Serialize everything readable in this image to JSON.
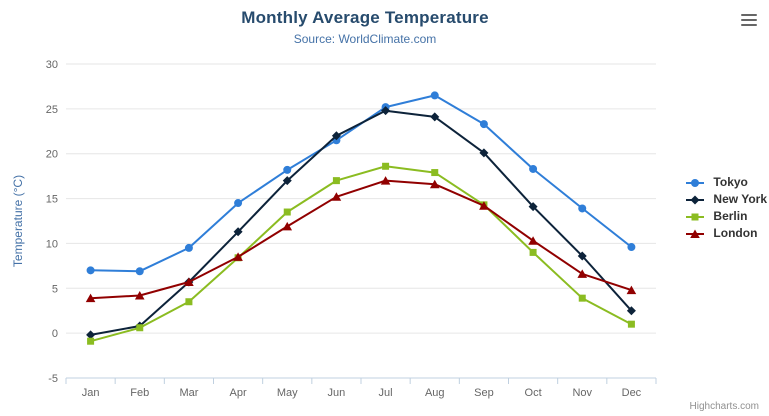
{
  "title": "Monthly Average Temperature",
  "subtitle": "Source: WorldClimate.com",
  "credits": "Highcharts.com",
  "colors": {
    "title": "#274b6d",
    "subtitle": "#4572a7",
    "axis_label": "#666666",
    "axis_title": "#4572a7",
    "gridline": "#e6e6e6",
    "axis_line": "#c0d0e0",
    "tick": "#c0d0e0"
  },
  "chart_data": {
    "type": "line",
    "title": "Monthly Average Temperature",
    "subtitle": "Source: WorldClimate.com",
    "xlabel": "",
    "ylabel": "Temperature (°C)",
    "ylim": [
      -5,
      30
    ],
    "ytick_step": 5,
    "grid": true,
    "legend_position": "right-middle",
    "categories": [
      "Jan",
      "Feb",
      "Mar",
      "Apr",
      "May",
      "Jun",
      "Jul",
      "Aug",
      "Sep",
      "Oct",
      "Nov",
      "Dec"
    ],
    "series": [
      {
        "name": "Tokyo",
        "color": "#2f7ed8",
        "marker": "circle",
        "values": [
          7.0,
          6.9,
          9.5,
          14.5,
          18.2,
          21.5,
          25.2,
          26.5,
          23.3,
          18.3,
          13.9,
          9.6
        ]
      },
      {
        "name": "New York",
        "color": "#0d233a",
        "marker": "diamond",
        "values": [
          -0.2,
          0.8,
          5.7,
          11.3,
          17.0,
          22.0,
          24.8,
          24.1,
          20.1,
          14.1,
          8.6,
          2.5
        ]
      },
      {
        "name": "Berlin",
        "color": "#8bbc21",
        "marker": "square",
        "values": [
          -0.9,
          0.6,
          3.5,
          8.4,
          13.5,
          17.0,
          18.6,
          17.9,
          14.3,
          9.0,
          3.9,
          1.0
        ]
      },
      {
        "name": "London",
        "color": "#910000",
        "marker": "triangle",
        "values": [
          3.9,
          4.2,
          5.7,
          8.5,
          11.9,
          15.2,
          17.0,
          16.6,
          14.2,
          10.3,
          6.6,
          4.8
        ]
      }
    ]
  }
}
